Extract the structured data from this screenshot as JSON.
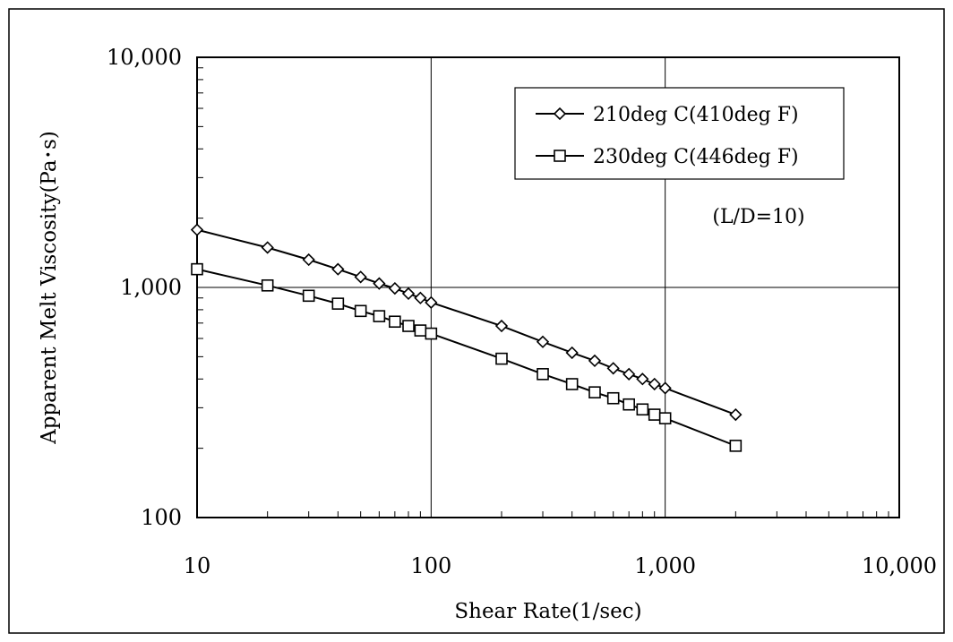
{
  "chart_data": {
    "type": "line",
    "x_scale": "log",
    "y_scale": "log",
    "xlabel": "Shear Rate(1/sec)",
    "ylabel": "Apparent Melt Viscosity(Pa･s)",
    "xlim": [
      10,
      10000
    ],
    "ylim": [
      100,
      10000
    ],
    "grid": true,
    "legend_position": "top-right",
    "x_ticks": [
      10,
      100,
      1000,
      10000
    ],
    "x_tick_labels": [
      "10",
      "100",
      "1,000",
      "10,000"
    ],
    "y_ticks": [
      100,
      1000,
      10000
    ],
    "y_tick_labels": [
      "100",
      "1,000",
      "10,000"
    ],
    "annotation": "(L/D=10)",
    "series": [
      {
        "name": "210deg C(410deg F)",
        "marker": "diamond",
        "color": "#000000",
        "x": [
          10,
          20,
          30,
          40,
          50,
          60,
          70,
          80,
          90,
          100,
          200,
          300,
          400,
          500,
          600,
          700,
          800,
          900,
          1000,
          2000
        ],
        "y": [
          1780,
          1490,
          1320,
          1200,
          1110,
          1040,
          990,
          940,
          900,
          860,
          680,
          580,
          520,
          480,
          445,
          420,
          400,
          380,
          365,
          280
        ]
      },
      {
        "name": "230deg C(446deg F)",
        "marker": "square",
        "color": "#000000",
        "x": [
          10,
          20,
          30,
          40,
          50,
          60,
          70,
          80,
          90,
          100,
          200,
          300,
          400,
          500,
          600,
          700,
          800,
          900,
          1000,
          2000
        ],
        "y": [
          1200,
          1020,
          920,
          850,
          790,
          750,
          710,
          680,
          650,
          630,
          490,
          420,
          380,
          350,
          330,
          310,
          295,
          280,
          270,
          205
        ]
      }
    ]
  }
}
